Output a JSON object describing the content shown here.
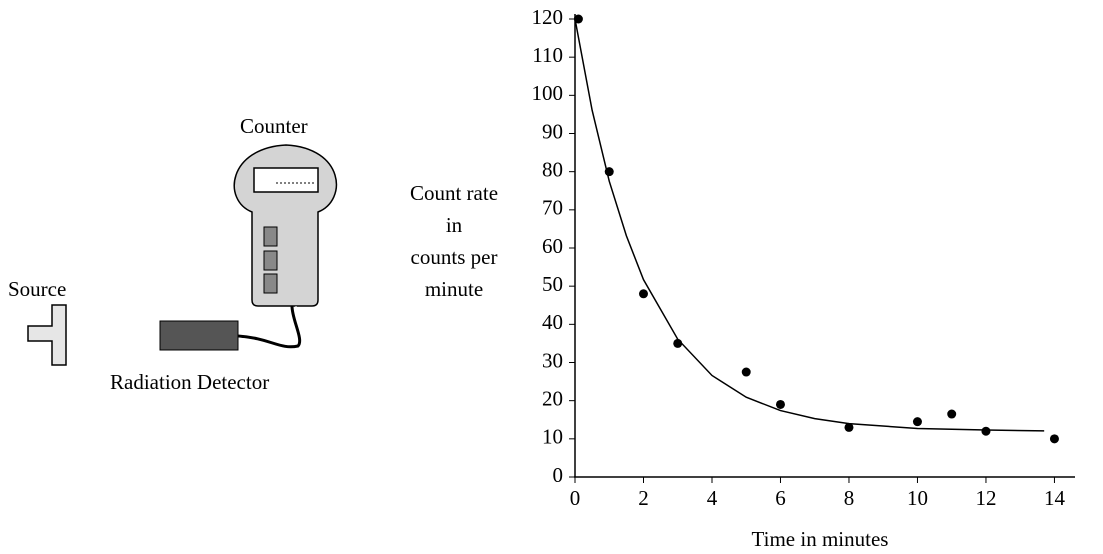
{
  "diagram": {
    "source": "Source",
    "counter": "Counter",
    "detector": "Radiation Detector"
  },
  "chart_data": {
    "type": "scatter",
    "xlabel": "Time in minutes",
    "ylabel": [
      "Count rate",
      "in",
      "counts per",
      "minute"
    ],
    "xlim": [
      0,
      14.6
    ],
    "xticks": [
      0,
      2,
      4,
      6,
      8,
      10,
      12,
      14
    ],
    "ylim": [
      0,
      120
    ],
    "yticks": [
      0,
      10,
      20,
      30,
      40,
      50,
      60,
      70,
      80,
      90,
      100,
      110,
      120
    ],
    "series": [
      {
        "type": "scatter",
        "color": "#000000",
        "x": [
          0.1,
          1,
          2,
          3,
          5,
          6,
          8,
          10,
          11,
          12,
          14
        ],
        "values": [
          120,
          80,
          48,
          35,
          27.5,
          19,
          13,
          14.5,
          16.5,
          12,
          10
        ]
      },
      {
        "type": "line",
        "color": "#000000",
        "x": [
          0,
          0.5,
          1,
          1.5,
          2,
          3,
          4,
          5,
          6,
          7,
          8,
          10,
          12,
          13.7
        ],
        "values": [
          120,
          96.1,
          77.5,
          63.2,
          51.7,
          36.1,
          26.6,
          20.9,
          17.4,
          15.3,
          14.0,
          12.7,
          12.3,
          12.1
        ]
      }
    ]
  }
}
